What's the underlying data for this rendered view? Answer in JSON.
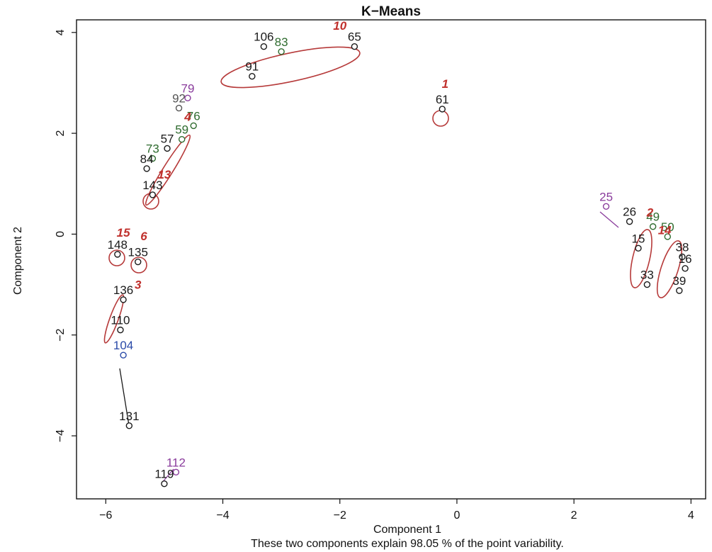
{
  "chart_data": {
    "type": "scatter",
    "title": "K−Means",
    "xlabel": "Component 1",
    "ylabel": "Component 2",
    "caption": "These two components explain 98.05 % of the point variability.",
    "xlim": [
      -6.5,
      4.25
    ],
    "ylim": [
      -5.25,
      4.25
    ],
    "xticks": [
      {
        "value": -6,
        "label": "−6"
      },
      {
        "value": -4,
        "label": "−4"
      },
      {
        "value": -2,
        "label": "−2"
      },
      {
        "value": 0,
        "label": "0"
      },
      {
        "value": 2,
        "label": "2"
      },
      {
        "value": 4,
        "label": "4"
      }
    ],
    "yticks": [
      {
        "value": 4,
        "label": "4"
      },
      {
        "value": 2,
        "label": "2"
      },
      {
        "value": 0,
        "label": "0"
      },
      {
        "value": -2,
        "label": "−2"
      },
      {
        "value": -4,
        "label": "−4"
      }
    ],
    "colors": {
      "black": "#1a1a1a",
      "green": "#2e6b2e",
      "red": "#c0302c",
      "purple": "#8a3c9c",
      "blue": "#2a4aa8",
      "gray": "#555555"
    },
    "points": [
      {
        "label": "106",
        "x": -3.3,
        "y": 3.72,
        "color": "#1a1a1a"
      },
      {
        "label": "83",
        "x": -3.0,
        "y": 3.62,
        "color": "#2e6b2e"
      },
      {
        "label": "65",
        "x": -1.75,
        "y": 3.72,
        "color": "#1a1a1a"
      },
      {
        "label": "91",
        "x": -3.5,
        "y": 3.13,
        "color": "#1a1a1a"
      },
      {
        "label": "79",
        "x": -4.6,
        "y": 2.7,
        "color": "#8a3c9c"
      },
      {
        "label": "92",
        "x": -4.75,
        "y": 2.5,
        "color": "#555555"
      },
      {
        "label": "76",
        "x": -4.5,
        "y": 2.15,
        "color": "#2e6b2e"
      },
      {
        "label": "59",
        "x": -4.7,
        "y": 1.88,
        "color": "#2e6b2e"
      },
      {
        "label": "57",
        "x": -4.95,
        "y": 1.7,
        "color": "#1a1a1a"
      },
      {
        "label": "73",
        "x": -5.2,
        "y": 1.5,
        "color": "#2e6b2e"
      },
      {
        "label": "84",
        "x": -5.3,
        "y": 1.3,
        "color": "#1a1a1a"
      },
      {
        "label": "143",
        "x": -5.2,
        "y": 0.78,
        "color": "#1a1a1a"
      },
      {
        "label": "61",
        "x": -0.25,
        "y": 2.48,
        "color": "#1a1a1a"
      },
      {
        "label": "148",
        "x": -5.8,
        "y": -0.4,
        "color": "#1a1a1a"
      },
      {
        "label": "135",
        "x": -5.45,
        "y": -0.55,
        "color": "#1a1a1a"
      },
      {
        "label": "136",
        "x": -5.7,
        "y": -1.3,
        "color": "#1a1a1a"
      },
      {
        "label": "110",
        "x": -5.75,
        "y": -1.9,
        "color": "#1a1a1a"
      },
      {
        "label": "104",
        "x": -5.7,
        "y": -2.4,
        "color": "#2a4aa8"
      },
      {
        "label": "131",
        "x": -5.6,
        "y": -3.8,
        "color": "#1a1a1a"
      },
      {
        "label": "112",
        "x": -4.8,
        "y": -4.72,
        "color": "#8a3c9c"
      },
      {
        "label": "119",
        "x": -5.0,
        "y": -4.95,
        "color": "#1a1a1a"
      },
      {
        "label": "25",
        "x": 2.55,
        "y": 0.55,
        "color": "#8a3c9c"
      },
      {
        "label": "26",
        "x": 2.95,
        "y": 0.25,
        "color": "#1a1a1a"
      },
      {
        "label": "49",
        "x": 3.35,
        "y": 0.15,
        "color": "#2e6b2e"
      },
      {
        "label": "50",
        "x": 3.6,
        "y": -0.05,
        "color": "#2e6b2e"
      },
      {
        "label": "15",
        "x": 3.1,
        "y": -0.28,
        "color": "#1a1a1a"
      },
      {
        "label": "38",
        "x": 3.85,
        "y": -0.45,
        "color": "#1a1a1a"
      },
      {
        "label": "16",
        "x": 3.9,
        "y": -0.68,
        "color": "#1a1a1a"
      },
      {
        "label": "33",
        "x": 3.25,
        "y": -1.0,
        "color": "#1a1a1a"
      },
      {
        "label": "39",
        "x": 3.8,
        "y": -1.12,
        "color": "#1a1a1a"
      }
    ],
    "cluster_labels": [
      {
        "label": "10",
        "x": -2.0,
        "y": 4.05
      },
      {
        "label": "1",
        "x": -0.2,
        "y": 2.9
      },
      {
        "label": "4",
        "x": -4.6,
        "y": 2.25
      },
      {
        "label": "13",
        "x": -5.0,
        "y": 1.1
      },
      {
        "label": "15",
        "x": -5.7,
        "y": -0.05
      },
      {
        "label": "6",
        "x": -5.35,
        "y": -0.12
      },
      {
        "label": "3",
        "x": -5.45,
        "y": -1.08
      },
      {
        "label": "2",
        "x": 3.3,
        "y": 0.35
      },
      {
        "label": "14",
        "x": 3.55,
        "y": 0.0
      }
    ]
  }
}
